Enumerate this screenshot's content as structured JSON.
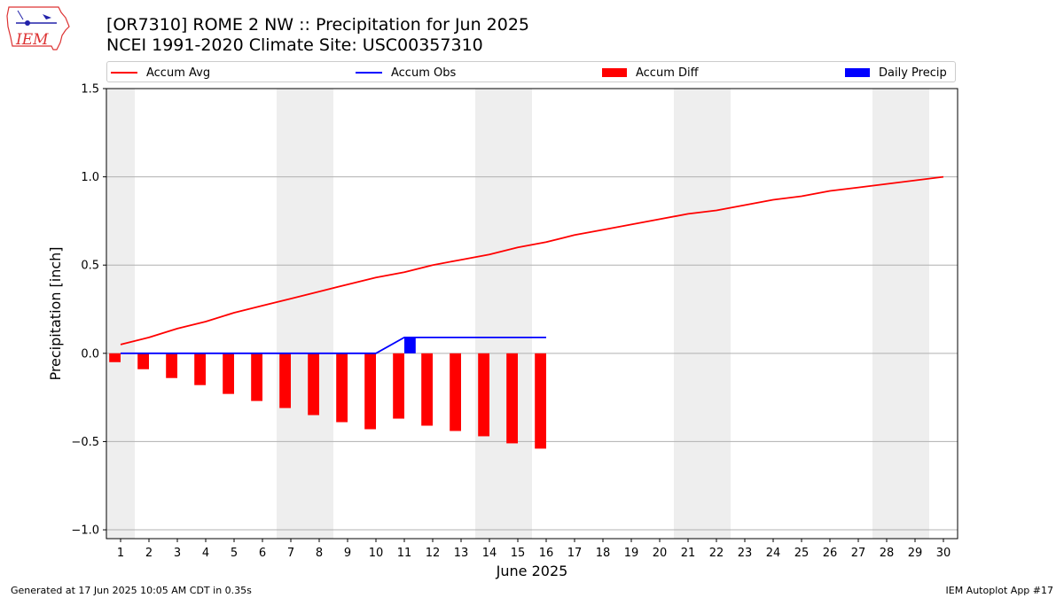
{
  "title_line1": "[OR7310] ROME 2 NW :: Precipitation for Jun 2025",
  "title_line2": "NCEI 1991-2020 Climate Site: USC00357310",
  "logo_text": "IEM",
  "footer_left": "Generated at 17 Jun 2025 10:05 AM CDT in 0.35s",
  "footer_right": "IEM Autoplot App #17",
  "colors": {
    "accum_avg": "#ff0000",
    "accum_obs": "#0000ff",
    "accum_diff": "#ff0000",
    "daily_precip": "#0000ff",
    "weekend_shade": "#eeeeee",
    "grid": "#b0b0b0"
  },
  "legend": [
    {
      "label": "Accum Avg",
      "kind": "line",
      "color": "#ff0000"
    },
    {
      "label": "Accum Obs",
      "kind": "line",
      "color": "#0000ff"
    },
    {
      "label": "Accum Diff",
      "kind": "box",
      "color": "#ff0000"
    },
    {
      "label": "Daily Precip",
      "kind": "box",
      "color": "#0000ff"
    }
  ],
  "chart_data": {
    "type": "bar",
    "xlabel": "June 2025",
    "ylabel": "Precipitation [inch]",
    "ylim": [
      -1.05,
      1.5
    ],
    "yticks": [
      -1.0,
      -0.5,
      0.0,
      0.5,
      1.0,
      1.5
    ],
    "ytick_labels": [
      "−1.0",
      "−0.5",
      "0.0",
      "0.5",
      "1.0",
      "1.5"
    ],
    "days": [
      1,
      2,
      3,
      4,
      5,
      6,
      7,
      8,
      9,
      10,
      11,
      12,
      13,
      14,
      15,
      16,
      17,
      18,
      19,
      20,
      21,
      22,
      23,
      24,
      25,
      26,
      27,
      28,
      29,
      30
    ],
    "weekend_days": [
      1,
      7,
      8,
      14,
      15,
      21,
      22,
      28,
      29
    ],
    "grid": "horizontal",
    "legend_placement": "top",
    "series": [
      {
        "name": "Accum Avg",
        "kind": "line",
        "days": [
          1,
          2,
          3,
          4,
          5,
          6,
          7,
          8,
          9,
          10,
          11,
          12,
          13,
          14,
          15,
          16,
          17,
          18,
          19,
          20,
          21,
          22,
          23,
          24,
          25,
          26,
          27,
          28,
          29,
          30
        ],
        "values": [
          0.05,
          0.09,
          0.14,
          0.18,
          0.23,
          0.27,
          0.31,
          0.35,
          0.39,
          0.43,
          0.46,
          0.5,
          0.53,
          0.56,
          0.6,
          0.63,
          0.67,
          0.7,
          0.73,
          0.76,
          0.79,
          0.81,
          0.84,
          0.87,
          0.89,
          0.92,
          0.94,
          0.96,
          0.98,
          1.0
        ]
      },
      {
        "name": "Accum Obs",
        "kind": "line",
        "days": [
          1,
          2,
          3,
          4,
          5,
          6,
          7,
          8,
          9,
          10,
          11,
          12,
          13,
          14,
          15,
          16
        ],
        "values": [
          0,
          0,
          0,
          0,
          0,
          0,
          0,
          0,
          0,
          0,
          0.09,
          0.09,
          0.09,
          0.09,
          0.09,
          0.09
        ]
      },
      {
        "name": "Accum Diff",
        "kind": "bar",
        "days": [
          1,
          2,
          3,
          4,
          5,
          6,
          7,
          8,
          9,
          10,
          11,
          12,
          13,
          14,
          15,
          16
        ],
        "values": [
          -0.05,
          -0.09,
          -0.14,
          -0.18,
          -0.23,
          -0.27,
          -0.31,
          -0.35,
          -0.39,
          -0.43,
          -0.37,
          -0.41,
          -0.44,
          -0.47,
          -0.51,
          -0.54
        ]
      },
      {
        "name": "Daily Precip",
        "kind": "bar",
        "days": [
          11
        ],
        "values": [
          0.09
        ]
      }
    ]
  }
}
